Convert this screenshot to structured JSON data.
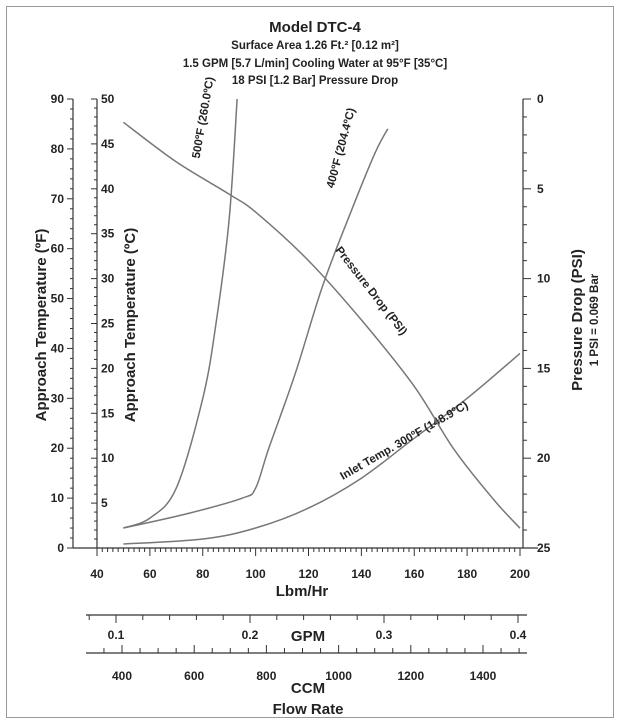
{
  "chart_data": {
    "type": "line",
    "title": "Model DTC-4",
    "subtitles": [
      "Surface Area 1.26 Ft.² [0.12 m²]",
      "1.5 GPM [5.7 L/min] Cooling Water at 95°F [35°C]",
      "18 PSI [1.2 Bar] Pressure Drop"
    ],
    "x_axis": {
      "label": "Lbm/Hr",
      "range": [
        40,
        200
      ],
      "ticks": [
        "40",
        "60",
        "80",
        "100",
        "120",
        "140",
        "160",
        "180",
        "200"
      ]
    },
    "gpm_axis": {
      "label": "GPM",
      "ticks": [
        "0.1",
        "0.2",
        "0.3",
        "0.4"
      ],
      "values": [
        0.1,
        0.2,
        0.3,
        0.4
      ]
    },
    "ccm_axis": {
      "label": "CCM",
      "ticks": [
        "400",
        "600",
        "800",
        "1000",
        "1200",
        "1400"
      ],
      "values": [
        400,
        600,
        800,
        1000,
        1200,
        1400
      ]
    },
    "flow_label": "Flow Rate",
    "y_left_f": {
      "label": "Approach Temperature (ºF)",
      "range": [
        0,
        90
      ],
      "ticks": [
        "0",
        "10",
        "20",
        "30",
        "40",
        "50",
        "60",
        "70",
        "80",
        "90"
      ]
    },
    "y_left_c": {
      "label": "Approach Temperature (ºC)",
      "range": [
        0,
        50
      ],
      "ticks": [
        "5",
        "10",
        "15",
        "20",
        "25",
        "30",
        "35",
        "40",
        "45",
        "50"
      ]
    },
    "y_right": {
      "label": "Pressure Drop (PSI)",
      "note": "1 PSI = 0.069 Bar",
      "range": [
        0,
        25
      ],
      "inverted": true,
      "ticks": [
        "0",
        "5",
        "10",
        "15",
        "20",
        "25"
      ]
    },
    "series": [
      {
        "name": "500ºF (260.0ºC)",
        "axis": "y_left_f",
        "points": [
          [
            50,
            4
          ],
          [
            60,
            6
          ],
          [
            70,
            12
          ],
          [
            80,
            30
          ],
          [
            85,
            45
          ],
          [
            90,
            66
          ],
          [
            93,
            90
          ]
        ]
      },
      {
        "name": "400ºF (204.4ºC)",
        "axis": "y_left_f",
        "points": [
          [
            50,
            4
          ],
          [
            75,
            7
          ],
          [
            95,
            10
          ],
          [
            100,
            12
          ],
          [
            105,
            20
          ],
          [
            115,
            35
          ],
          [
            125,
            52
          ],
          [
            135,
            66
          ],
          [
            145,
            79
          ],
          [
            150,
            84
          ]
        ]
      },
      {
        "name": "Inlet Temp. 300ºF (148.9ºC)",
        "axis": "y_left_f",
        "points": [
          [
            50,
            0.8
          ],
          [
            80,
            1.8
          ],
          [
            100,
            4
          ],
          [
            120,
            8
          ],
          [
            140,
            14
          ],
          [
            160,
            22
          ],
          [
            180,
            30
          ],
          [
            200,
            39
          ]
        ]
      },
      {
        "name": "Pressure Drop (PSI)",
        "axis": "y_right",
        "points": [
          [
            50,
            1.3
          ],
          [
            70,
            3.5
          ],
          [
            90,
            5.3
          ],
          [
            100,
            6.3
          ],
          [
            120,
            9
          ],
          [
            140,
            12.3
          ],
          [
            160,
            16
          ],
          [
            175,
            19.5
          ],
          [
            190,
            22.3
          ],
          [
            200,
            23.9
          ]
        ]
      }
    ]
  }
}
